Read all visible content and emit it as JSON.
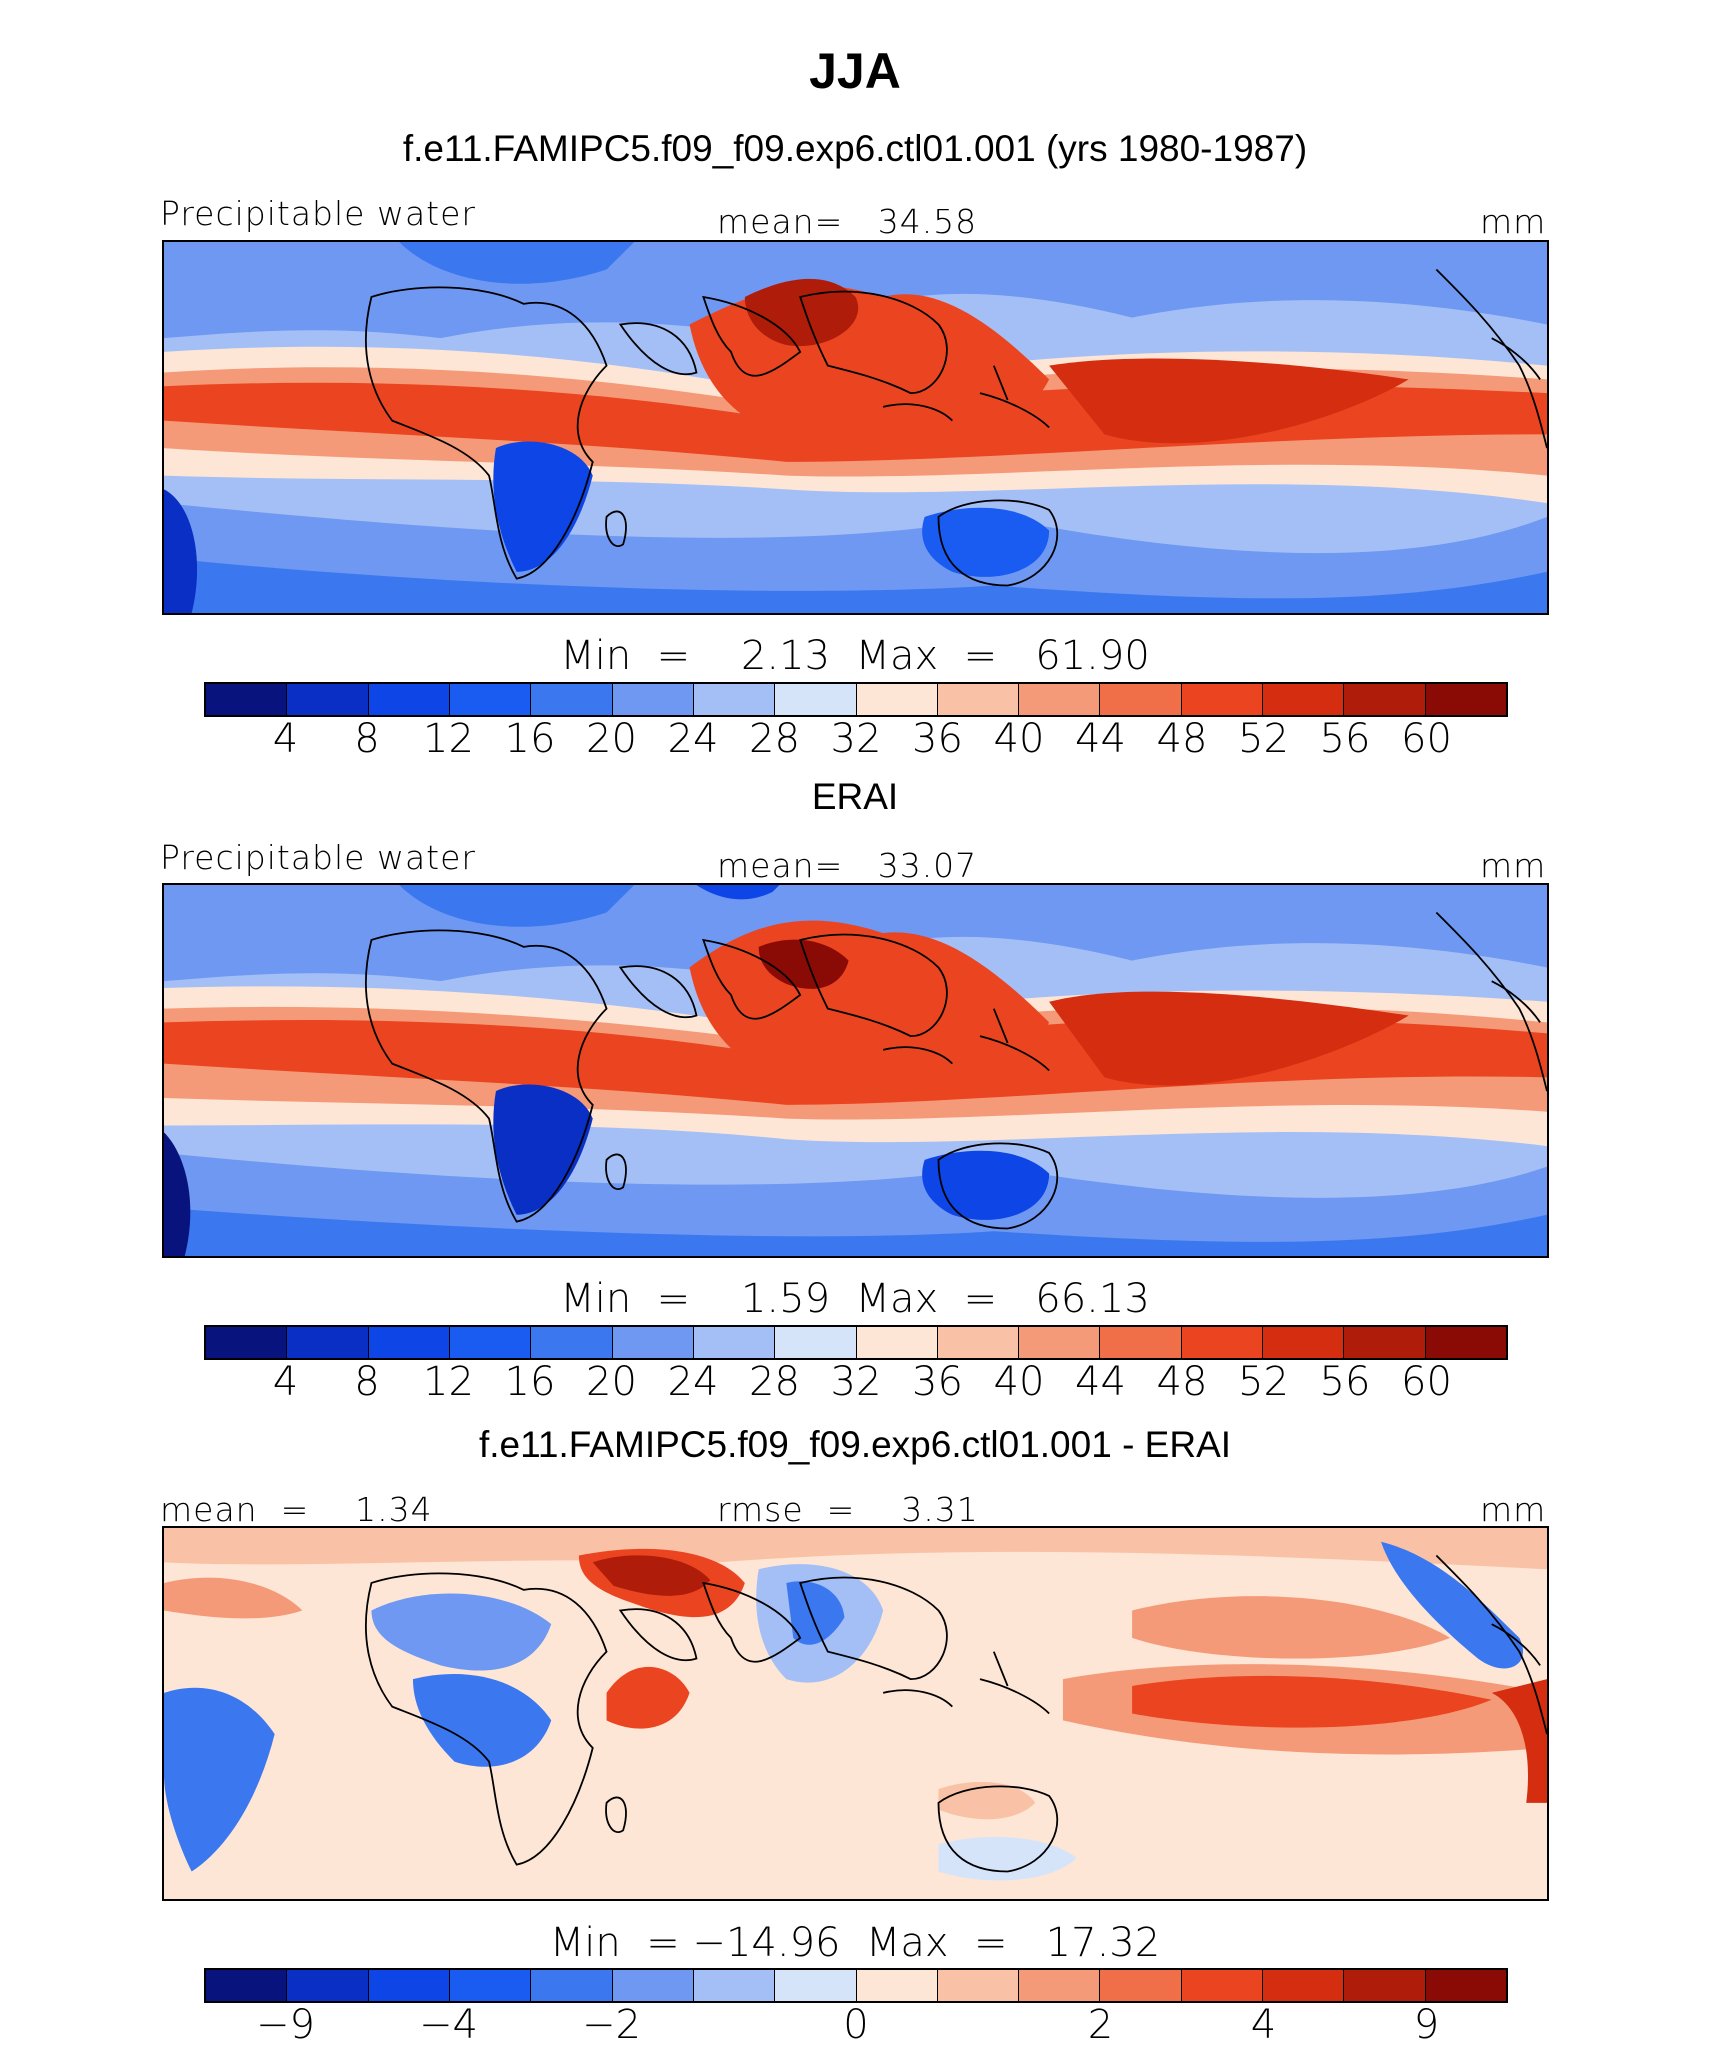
{
  "title": "JJA",
  "colors": [
    "#08137d",
    "#0a2fc4",
    "#0d45e6",
    "#1a5cf2",
    "#3b78f0",
    "#6e98f2",
    "#a4bff5",
    "#d6e4fa",
    "#fde6d6",
    "#f9c2a6",
    "#f59a78",
    "#f06e48",
    "#ea4520",
    "#d42d10",
    "#b01c0a",
    "#8a0a05"
  ],
  "panels": [
    {
      "subtitle": "f.e11.FAMIPC5.f09_f09.exp6.ctl01.001 (yrs 1980-1987)",
      "left_label": "Precipitable water",
      "center_label": "mean=   34.58",
      "right_label": "mm",
      "minmax": "Min  =    2.13  Max  =   61.90",
      "ticks": [
        "4",
        "8",
        "12",
        "16",
        "20",
        "24",
        "28",
        "32",
        "36",
        "40",
        "44",
        "48",
        "52",
        "56",
        "60"
      ]
    },
    {
      "subtitle": "ERAI",
      "left_label": "Precipitable water",
      "center_label": "mean=   33.07",
      "right_label": "mm",
      "minmax": "Min  =    1.59  Max  =   66.13",
      "ticks": [
        "4",
        "8",
        "12",
        "16",
        "20",
        "24",
        "28",
        "32",
        "36",
        "40",
        "44",
        "48",
        "52",
        "56",
        "60"
      ]
    },
    {
      "subtitle": "f.e11.FAMIPC5.f09_f09.exp6.ctl01.001 - ERAI",
      "left_label": "mean  =    1.34",
      "center_label": "rmse  =    3.31",
      "right_label": "mm",
      "minmax": "Min  = −14.96  Max  =   17.32",
      "ticks": [
        "−9",
        "−4",
        "−2",
        "0",
        "2",
        "4",
        "9"
      ]
    }
  ]
}
